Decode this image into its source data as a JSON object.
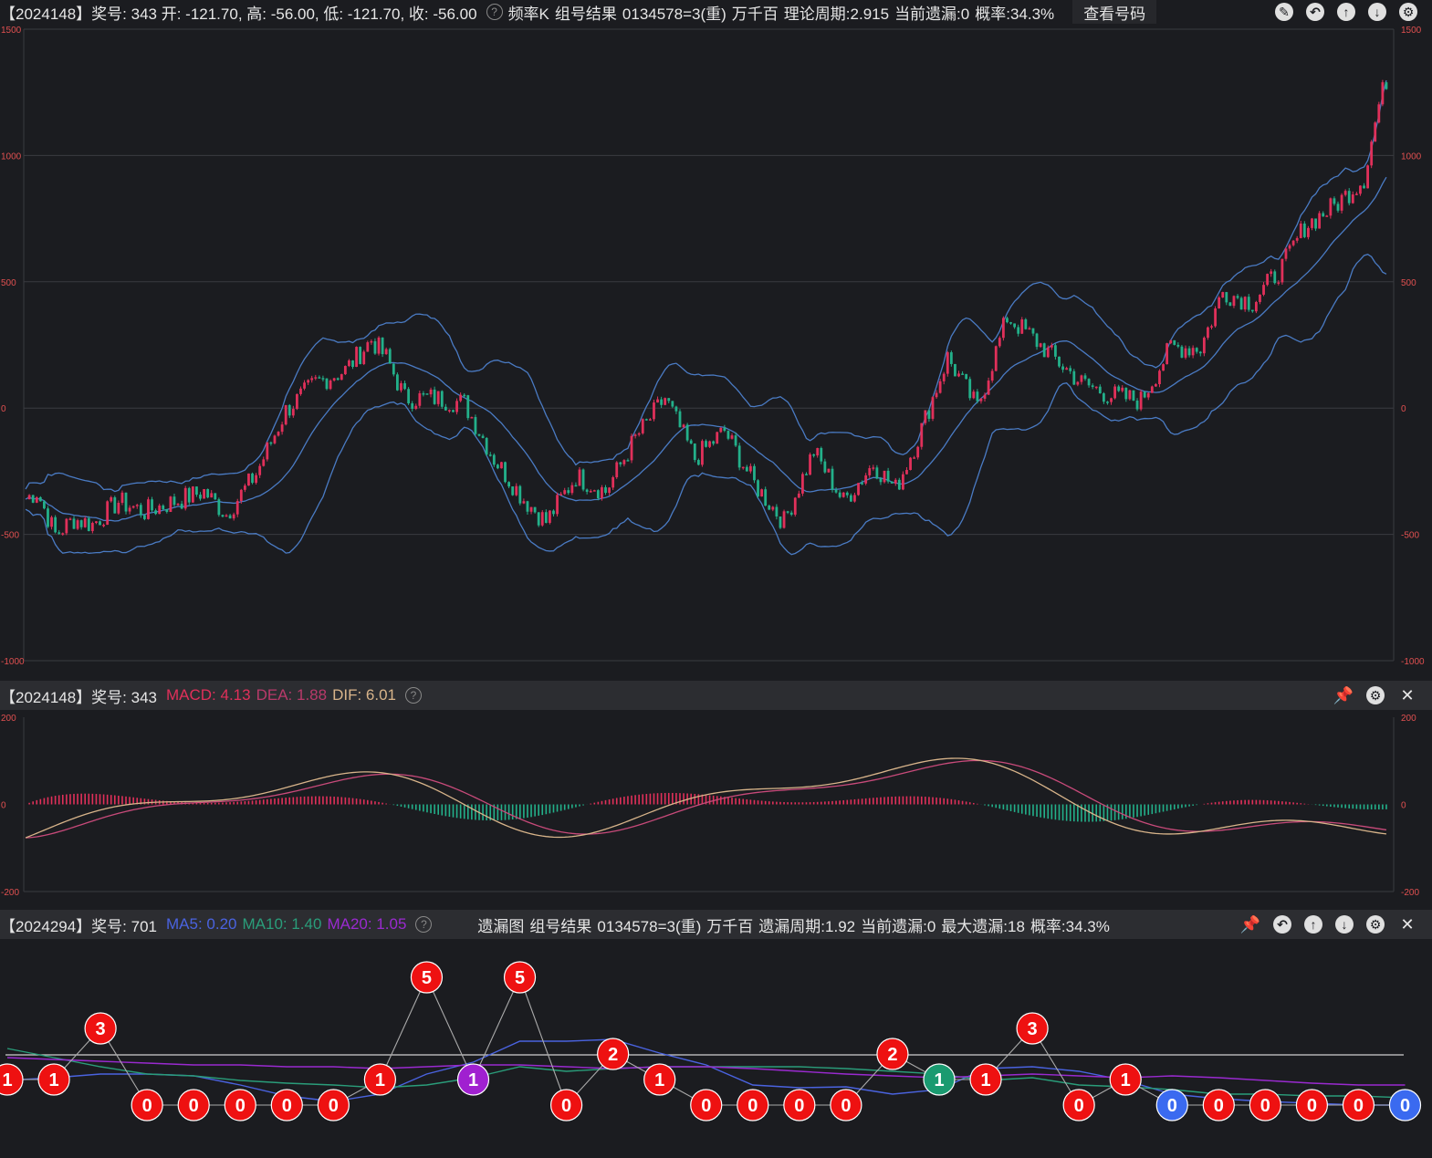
{
  "top_bar": {
    "title": "【2024148】奖号: 343  开: -121.70, 高: -56.00, 低: -121.70, 收: -56.00",
    "k_type": "频率K",
    "group_label": "组号结果",
    "combo": "0134578=3(重)",
    "position": "万千百",
    "period": "理论周期:2.915",
    "current_miss": "当前遗漏:0",
    "prob": "概率:34.3%",
    "view_button": "查看号码"
  },
  "macd_bar": {
    "title": "【2024148】奖号: 343",
    "macd": "MACD: 4.13",
    "dea": "DEA: 1.88",
    "dif": "DIF: 6.01"
  },
  "miss_bar": {
    "title": "【2024294】奖号: 701",
    "ma5": "MA5: 0.20",
    "ma10": "MA10: 1.40",
    "ma20": "MA20: 1.05",
    "chart_name": "遗漏图",
    "group_label": "组号结果",
    "combo": "0134578=3(重)",
    "position": "万千百",
    "period": "遗漏周期:1.92",
    "current_miss": "当前遗漏:0",
    "max_miss": "最大遗漏:18",
    "prob": "概率:34.3%"
  },
  "colors": {
    "up": "#e0305a",
    "down": "#23b08a",
    "band": "#4a7bc4",
    "grid": "#3a3b40",
    "macd_red": "#e0305a",
    "dea": "#c84a7a",
    "dif": "#d8b48a",
    "ma5": "#4a63e0",
    "ma10": "#2a9d7a",
    "ma20": "#9a2ad0",
    "node_red": "#ee1111",
    "node_purple": "#a020d0",
    "node_green": "#1a9a70",
    "node_blue": "#3a6af0"
  },
  "icons": {
    "top": [
      "edit-icon",
      "undo-icon",
      "up-icon",
      "down-icon",
      "settings-icon"
    ],
    "macd": [
      "pin-icon",
      "settings-icon",
      "close-icon"
    ],
    "miss": [
      "pin-icon",
      "undo-icon",
      "up-icon",
      "down-icon",
      "settings-icon",
      "close-icon"
    ]
  },
  "chart_data": [
    {
      "type": "candlestick",
      "ylim": [
        -1000,
        1500
      ],
      "yticks": [
        "1500",
        "1000",
        "500",
        "0",
        "-500",
        "-1000"
      ],
      "key_points": [
        [
          0,
          -360
        ],
        [
          3,
          -330
        ],
        [
          8,
          -500
        ],
        [
          13,
          -440
        ],
        [
          18,
          -460
        ],
        [
          25,
          -370
        ],
        [
          32,
          -410
        ],
        [
          40,
          -370
        ],
        [
          48,
          -330
        ],
        [
          54,
          -420
        ],
        [
          62,
          -260
        ],
        [
          70,
          -10
        ],
        [
          78,
          100
        ],
        [
          86,
          150
        ],
        [
          93,
          270
        ],
        [
          97,
          200
        ],
        [
          102,
          40
        ],
        [
          110,
          40
        ],
        [
          118,
          20
        ],
        [
          126,
          -200
        ],
        [
          134,
          -360
        ],
        [
          140,
          -450
        ],
        [
          148,
          -270
        ],
        [
          156,
          -330
        ],
        [
          164,
          -120
        ],
        [
          172,
          40
        ],
        [
          180,
          -200
        ],
        [
          188,
          -90
        ],
        [
          196,
          -300
        ],
        [
          204,
          -450
        ],
        [
          212,
          -170
        ],
        [
          220,
          -370
        ],
        [
          228,
          -220
        ],
        [
          234,
          -320
        ],
        [
          240,
          -120
        ],
        [
          248,
          200
        ],
        [
          256,
          0
        ],
        [
          264,
          360
        ],
        [
          270,
          290
        ],
        [
          278,
          180
        ],
        [
          284,
          100
        ],
        [
          292,
          50
        ],
        [
          300,
          30
        ],
        [
          308,
          240
        ],
        [
          316,
          240
        ],
        [
          322,
          460
        ],
        [
          330,
          420
        ],
        [
          338,
          560
        ],
        [
          344,
          720
        ],
        [
          352,
          800
        ],
        [
          360,
          910
        ],
        [
          364,
          1200
        ],
        [
          366,
          1300
        ]
      ],
      "count": 367
    },
    {
      "type": "macd",
      "ylim": [
        -200,
        200
      ],
      "yticks": [
        "200",
        "0",
        "-200"
      ]
    },
    {
      "type": "line",
      "series_names": [
        "MA5",
        "MA10",
        "MA20"
      ],
      "nodes": [
        {
          "v": 1,
          "c": "red"
        },
        {
          "v": 1,
          "c": "red"
        },
        {
          "v": 3,
          "c": "red"
        },
        {
          "v": 0,
          "c": "red"
        },
        {
          "v": 0,
          "c": "red"
        },
        {
          "v": 0,
          "c": "red"
        },
        {
          "v": 0,
          "c": "red"
        },
        {
          "v": 0,
          "c": "red"
        },
        {
          "v": 1,
          "c": "red"
        },
        {
          "v": 5,
          "c": "red"
        },
        {
          "v": 1,
          "c": "purple"
        },
        {
          "v": 5,
          "c": "red"
        },
        {
          "v": 0,
          "c": "red"
        },
        {
          "v": 2,
          "c": "red"
        },
        {
          "v": 1,
          "c": "red"
        },
        {
          "v": 0,
          "c": "red"
        },
        {
          "v": 0,
          "c": "red"
        },
        {
          "v": 0,
          "c": "red"
        },
        {
          "v": 0,
          "c": "red"
        },
        {
          "v": 2,
          "c": "red"
        },
        {
          "v": 1,
          "c": "green"
        },
        {
          "v": 1,
          "c": "red"
        },
        {
          "v": 3,
          "c": "red"
        },
        {
          "v": 0,
          "c": "red"
        },
        {
          "v": 1,
          "c": "red"
        },
        {
          "v": 0,
          "c": "blue"
        },
        {
          "v": 0,
          "c": "red"
        },
        {
          "v": 0,
          "c": "red"
        },
        {
          "v": 0,
          "c": "red"
        },
        {
          "v": 0,
          "c": "red"
        },
        {
          "v": 0,
          "c": "blue"
        }
      ]
    }
  ]
}
